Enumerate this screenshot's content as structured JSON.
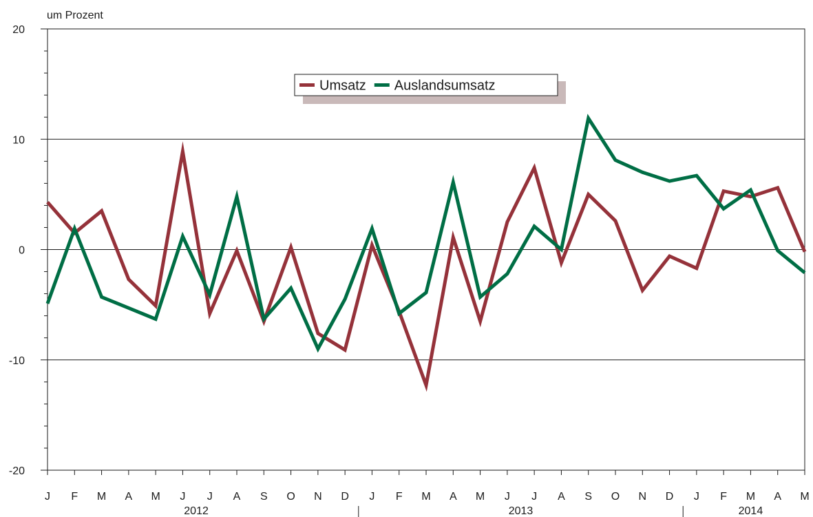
{
  "chart_data": {
    "type": "line",
    "ylabel": "um Prozent",
    "ylim": [
      -20,
      20
    ],
    "y_ticks": [
      "20",
      "10",
      "0",
      "-10",
      "-20"
    ],
    "y_tick_values": [
      20,
      10,
      0,
      -10,
      -20
    ],
    "grid": "horizontal at 10, 0, -10",
    "legend": "top-center",
    "x": [
      "J",
      "F",
      "M",
      "A",
      "M",
      "J",
      "J",
      "A",
      "S",
      "O",
      "N",
      "D",
      "J",
      "F",
      "M",
      "A",
      "M",
      "J",
      "J",
      "A",
      "S",
      "O",
      "N",
      "D",
      "J",
      "F",
      "M",
      "A",
      "M"
    ],
    "years": [
      {
        "label": "2012",
        "start": 0,
        "end": 11
      },
      {
        "label": "2013",
        "start": 12,
        "end": 23
      },
      {
        "label": "2014",
        "start": 24,
        "end": 28
      }
    ],
    "series": [
      {
        "name": "Umsatz",
        "color": "#95323a",
        "values": [
          4.3,
          1.5,
          3.5,
          -2.7,
          -5.1,
          8.9,
          -5.8,
          -0.1,
          -6.5,
          0.2,
          -7.6,
          -9.1,
          0.4,
          -5.6,
          -12.3,
          1.1,
          -6.5,
          2.5,
          7.4,
          -1.2,
          5.0,
          2.6,
          -3.7,
          -0.6,
          -1.7,
          5.3,
          4.8,
          5.6,
          -0.2
        ]
      },
      {
        "name": "Auslandsumsatz",
        "color": "#006e45",
        "values": [
          -4.9,
          1.9,
          -4.3,
          -5.3,
          -6.3,
          1.2,
          -4.1,
          4.8,
          -6.3,
          -3.5,
          -9.0,
          -4.5,
          1.9,
          -5.8,
          -3.9,
          6.1,
          -4.3,
          -2.2,
          2.1,
          0.0,
          11.9,
          8.1,
          7.0,
          6.2,
          6.7,
          3.7,
          5.4,
          -0.1,
          -2.1
        ]
      }
    ]
  }
}
